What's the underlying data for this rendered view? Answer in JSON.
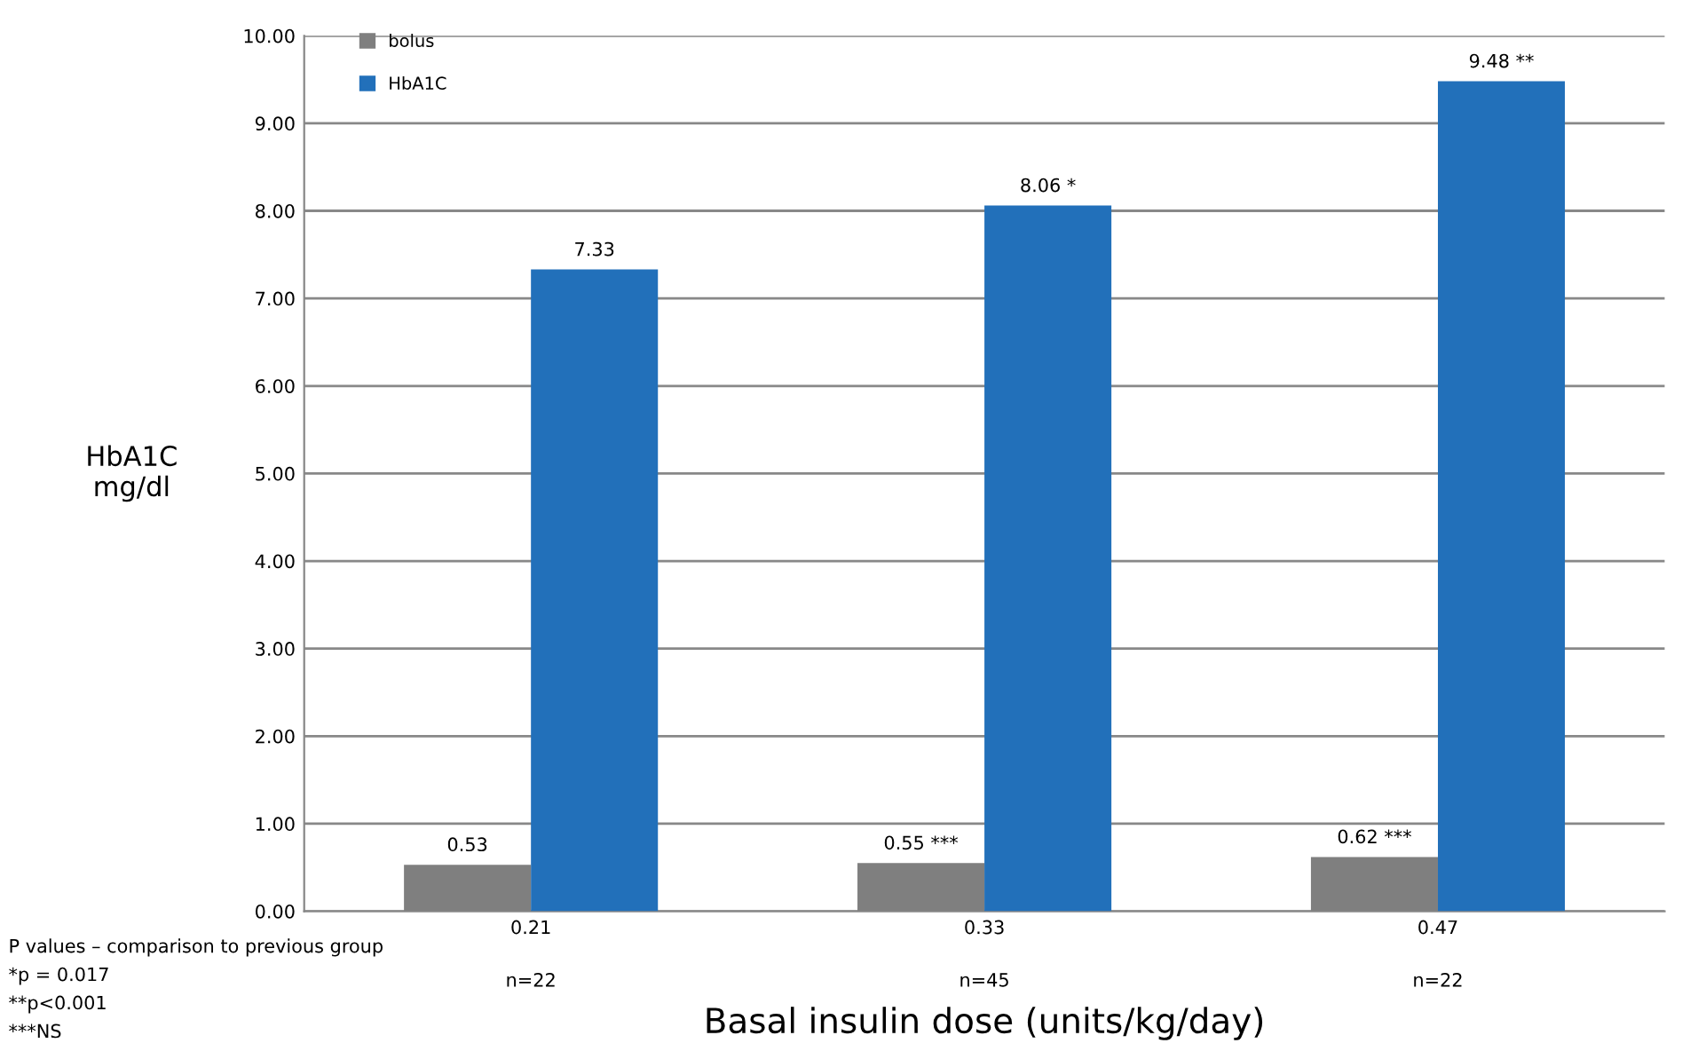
{
  "chart_data": {
    "type": "bar",
    "xlabel": "Basal insulin dose (units/kg/day)",
    "ylabel": "HbA1C\nmg/dl",
    "categories": [
      "0.21",
      "0.33",
      "0.47"
    ],
    "series": [
      {
        "name": "bolus",
        "color": "#7f7f7f",
        "values": [
          0.53,
          0.55,
          0.62
        ],
        "value_labels": [
          "0.53",
          "0.55 ***",
          "0.62 ***"
        ]
      },
      {
        "name": "HbA1C",
        "color": "#2270ba",
        "values": [
          7.33,
          8.06,
          9.48
        ],
        "value_labels": [
          "7.33",
          "8.06 *",
          "9.48 **"
        ]
      }
    ],
    "ylim": [
      0,
      10
    ],
    "yticks": [
      {
        "value": 0,
        "label": "0.00"
      },
      {
        "value": 1,
        "label": "1.00"
      },
      {
        "value": 2,
        "label": "2.00"
      },
      {
        "value": 3,
        "label": "3.00"
      },
      {
        "value": 4,
        "label": "4.00"
      },
      {
        "value": 5,
        "label": "5.00"
      },
      {
        "value": 6,
        "label": "6.00"
      },
      {
        "value": 7,
        "label": "7.00"
      },
      {
        "value": 8,
        "label": "8.00"
      },
      {
        "value": 9,
        "label": "9.00"
      },
      {
        "value": 10,
        "label": "10.00"
      }
    ],
    "grid": "y",
    "legend": "top left",
    "annotations": [
      "n=22",
      "n=45",
      "n=22",
      "P values – comparison to previous group",
      "*p = 0.017",
      "**p<0.001",
      "***NS"
    ]
  }
}
